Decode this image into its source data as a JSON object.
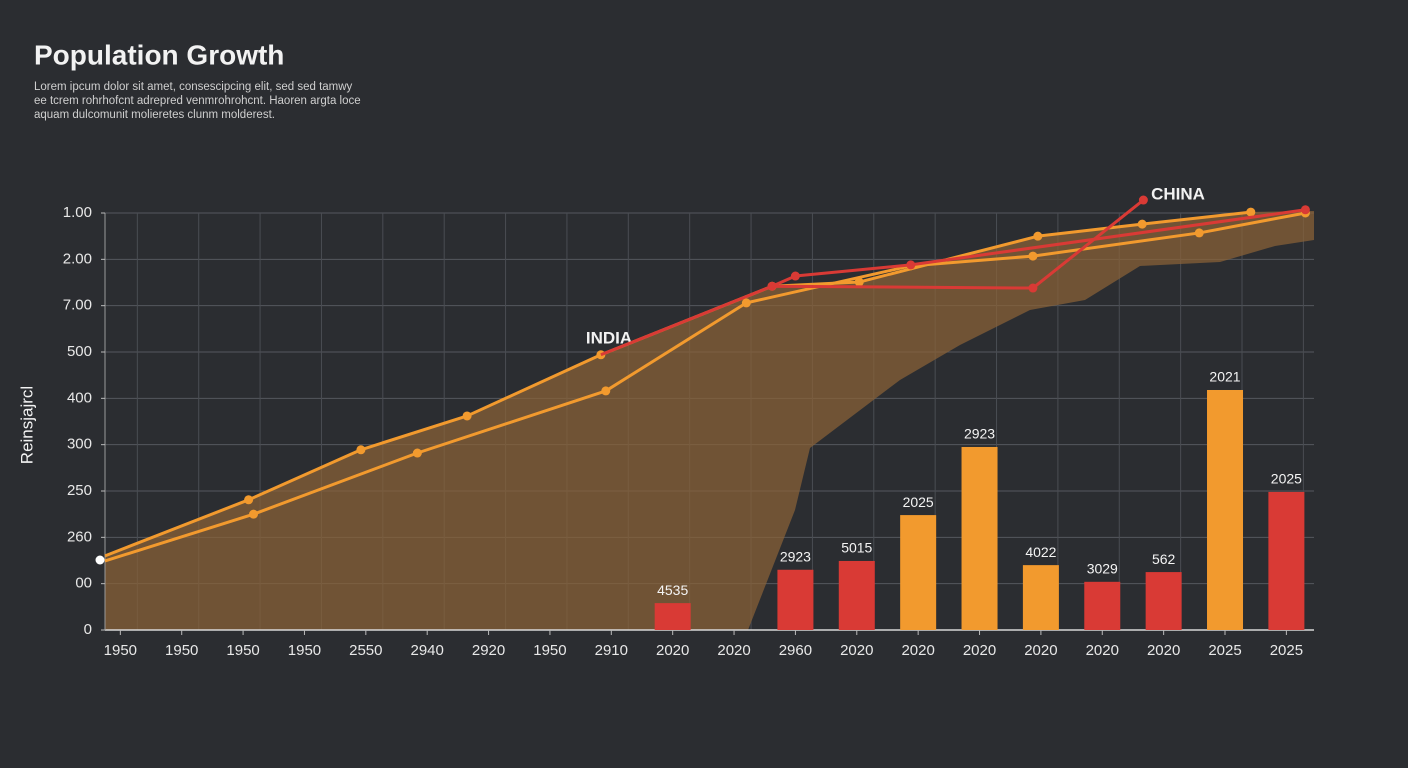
{
  "chart_data": {
    "type": "combo",
    "title": "Population Growth",
    "subtitle": [
      "Lorem ipcum dolor sit amet, consescipcing elit, sed sed tamwy",
      "ee tcrem rohrhofcnt adrepred venmrohrohcnt. Haoren argta loce",
      "aquam dulcomunit molieretes clunm molderest."
    ],
    "ylabel": "Reinsjajrcl",
    "annotations": [
      "INDIA",
      "CHINA"
    ],
    "categories": [
      "1950",
      "1950",
      "1950",
      "1950",
      "2550",
      "2940",
      "2920",
      "1950",
      "2910",
      "2020",
      "2020",
      "2960",
      "2020",
      "2020",
      "2020",
      "2020",
      "2020",
      "2020",
      "2025",
      "2025"
    ],
    "xlim": [
      -0.25,
      19.45
    ],
    "ylim": [
      0,
      9
    ],
    "yticks": [
      {
        "value": 0,
        "label": "0"
      },
      {
        "value": 1,
        "label": "00"
      },
      {
        "value": 2,
        "label": "260"
      },
      {
        "value": 3,
        "label": "250"
      },
      {
        "value": 4,
        "label": "300"
      },
      {
        "value": 5,
        "label": "400"
      },
      {
        "value": 6,
        "label": "500"
      },
      {
        "value": 7,
        "label": "7.00"
      },
      {
        "value": 8,
        "label": "2.00"
      },
      {
        "value": 9,
        "label": "1.00"
      }
    ],
    "grid": true,
    "bars": {
      "x": [
        9,
        11,
        12,
        13,
        14,
        15,
        16,
        17,
        18,
        19
      ],
      "values": [
        0.58,
        1.3,
        1.49,
        2.48,
        3.95,
        1.4,
        1.04,
        1.25,
        5.18,
        2.98
      ],
      "labels": [
        "4535",
        "2923",
        "5015",
        "2025",
        "2923",
        "4022",
        "3029",
        "562",
        "2021",
        "2025"
      ],
      "colors": [
        "#d93a35",
        "#d93a35",
        "#d93a35",
        "#f29a2e",
        "#f29a2e",
        "#f29a2e",
        "#d93a35",
        "#d93a35",
        "#f29a2e",
        "#d93a35"
      ]
    },
    "series": [
      {
        "color": "#f29a2e",
        "x": [
          -0.25,
          2.09,
          3.92,
          5.65,
          7.83,
          10.62,
          12.04,
          14.95,
          16.65,
          18.42
        ],
        "values": [
          1.6,
          2.81,
          3.89,
          4.62,
          5.94,
          7.42,
          7.51,
          8.5,
          8.76,
          9.02
        ]
      },
      {
        "color": "#f29a2e",
        "x": [
          -0.25,
          2.17,
          4.84,
          7.91,
          10.2,
          12.88,
          14.87,
          17.58,
          19.31
        ],
        "values": [
          1.49,
          2.5,
          3.82,
          5.16,
          7.06,
          7.86,
          8.07,
          8.57,
          9.0
        ]
      },
      {
        "color": "#d93a35",
        "x": [
          7.83,
          10.62,
          14.87,
          16.67
        ],
        "values": [
          5.94,
          7.42,
          7.38,
          9.28
        ]
      },
      {
        "color": "#d93a35",
        "x": [
          10.62,
          11.0,
          12.88,
          19.31
        ],
        "values": [
          7.42,
          7.64,
          7.88,
          9.07
        ]
      }
    ]
  }
}
